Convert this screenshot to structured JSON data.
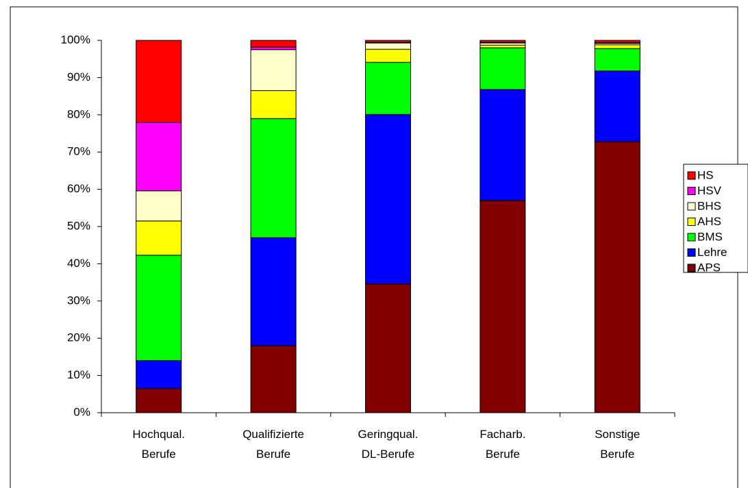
{
  "chart_data": {
    "type": "stacked_bar",
    "categories": [
      "Hochqual.\nBerufe",
      "Qualifizierte\nBerufe",
      "Geringqual.\nDL-Berufe",
      "Facharb.\nBerufe",
      "Sonstige\nBerufe"
    ],
    "series": [
      {
        "name": "APS",
        "color": "#800000",
        "values": [
          6.5,
          18,
          34.6,
          57,
          72.8
        ]
      },
      {
        "name": "Lehre",
        "color": "#0000ff",
        "values": [
          7.5,
          29,
          45.5,
          29.8,
          19
        ]
      },
      {
        "name": "BMS",
        "color": "#00ff00",
        "values": [
          28.3,
          32,
          14,
          11.2,
          6
        ]
      },
      {
        "name": "AHS",
        "color": "#ffff00",
        "values": [
          9.2,
          7.5,
          3.5,
          0.7,
          1
        ]
      },
      {
        "name": "BHS",
        "color": "#ffffcc",
        "values": [
          8.1,
          11,
          1.7,
          0.6,
          0.4
        ]
      },
      {
        "name": "HSV",
        "color": "#ff00ff",
        "values": [
          18.4,
          0.7,
          0.2,
          0.2,
          0.2
        ]
      },
      {
        "name": "HS",
        "color": "#ff0000",
        "values": [
          22,
          1.8,
          0.5,
          0.5,
          0.6
        ]
      }
    ],
    "ylim": [
      0,
      100
    ],
    "yticks": [
      {
        "value": 0,
        "label": "0%"
      },
      {
        "value": 10,
        "label": "10%"
      },
      {
        "value": 20,
        "label": "20%"
      },
      {
        "value": 30,
        "label": "30%"
      },
      {
        "value": 40,
        "label": "40%"
      },
      {
        "value": 50,
        "label": "50%"
      },
      {
        "value": 60,
        "label": "60%"
      },
      {
        "value": 70,
        "label": "70%"
      },
      {
        "value": 80,
        "label": "80%"
      },
      {
        "value": 90,
        "label": "90%"
      },
      {
        "value": 100,
        "label": "100%"
      }
    ],
    "legend": "right"
  }
}
